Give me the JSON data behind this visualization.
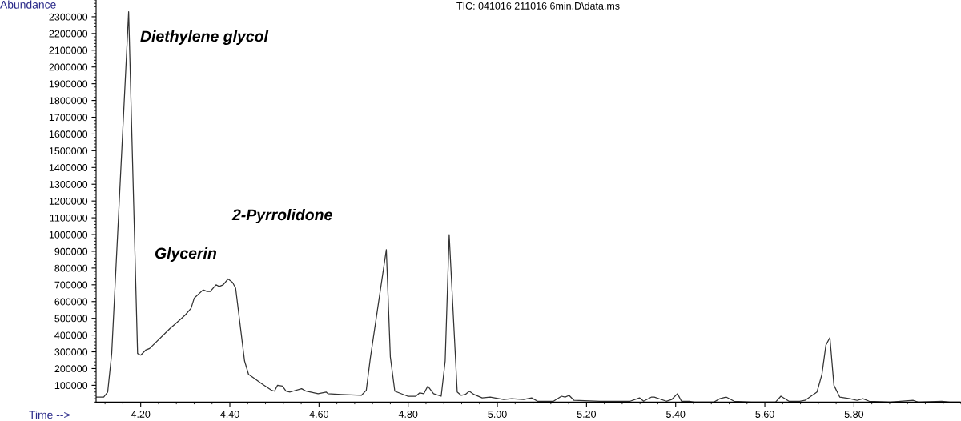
{
  "chart_data": {
    "type": "line",
    "title": "TIC: 041016 211016 6min.D\\data.ms",
    "xlabel": "Time -->",
    "ylabel": "Abundance",
    "annotations": [
      "Diethylene glycol",
      "Glycerin",
      "2-Pyrrolidone"
    ],
    "x": [
      4.1,
      4.117,
      4.126,
      4.135,
      4.173,
      4.193,
      4.2,
      4.211,
      4.22,
      4.266,
      4.279,
      4.3,
      4.313,
      4.32,
      4.34,
      4.349,
      4.356,
      4.369,
      4.376,
      4.385,
      4.396,
      4.406,
      4.413,
      4.433,
      4.442,
      4.453,
      4.471,
      4.494,
      4.5,
      4.507,
      4.518,
      4.526,
      4.535,
      4.561,
      4.571,
      4.598,
      4.616,
      4.62,
      4.65,
      4.695,
      4.706,
      4.715,
      4.751,
      4.76,
      4.77,
      4.799,
      4.817,
      4.826,
      4.835,
      4.844,
      4.857,
      4.874,
      4.883,
      4.892,
      4.91,
      4.919,
      4.928,
      4.937,
      4.948,
      4.966,
      4.984,
      5.014,
      5.032,
      5.059,
      5.077,
      5.09,
      5.126,
      5.144,
      5.152,
      5.161,
      5.172,
      5.23,
      5.298,
      5.319,
      5.328,
      5.346,
      5.352,
      5.379,
      5.391,
      5.404,
      5.413,
      5.431,
      5.441,
      5.463,
      5.486,
      5.499,
      5.513,
      5.531,
      5.57,
      5.624,
      5.636,
      5.654,
      5.678,
      5.69,
      5.701,
      5.717,
      5.728,
      5.737,
      5.746,
      5.755,
      5.768,
      5.791,
      5.807,
      5.82,
      5.834,
      5.881,
      5.933,
      5.944,
      5.997,
      6.015,
      6.037
    ],
    "series": [
      {
        "color": "#333333",
        "values": [
          30000,
          30000,
          60000,
          290000,
          2330000,
          290000,
          280000,
          310000,
          320000,
          440000,
          470000,
          520000,
          560000,
          620000,
          670000,
          660000,
          660000,
          700000,
          690000,
          700000,
          735000,
          715000,
          680000,
          245000,
          165000,
          145000,
          110000,
          70000,
          65000,
          100000,
          95000,
          65000,
          60000,
          80000,
          65000,
          50000,
          60000,
          50000,
          45000,
          40000,
          70000,
          260000,
          910000,
          270000,
          65000,
          35000,
          35000,
          55000,
          50000,
          95000,
          50000,
          35000,
          245000,
          1000000,
          60000,
          40000,
          45000,
          65000,
          45000,
          25000,
          30000,
          15000,
          20000,
          15000,
          25000,
          5000,
          5000,
          35000,
          30000,
          40000,
          10000,
          5000,
          5000,
          25000,
          5000,
          30000,
          30000,
          5000,
          15000,
          50000,
          5000,
          5000,
          0,
          0,
          0,
          20000,
          30000,
          5000,
          0,
          0,
          35000,
          5000,
          5000,
          10000,
          30000,
          60000,
          165000,
          340000,
          385000,
          100000,
          30000,
          20000,
          10000,
          20000,
          5000,
          0,
          10000,
          0,
          5000,
          0,
          0
        ]
      }
    ],
    "xlim": [
      4.1,
      6.04
    ],
    "ylim": [
      0,
      2400000
    ],
    "xticks": [
      {
        "value": 4.2,
        "label": "4.20"
      },
      {
        "value": 4.4,
        "label": "4.40"
      },
      {
        "value": 4.6,
        "label": "4.60"
      },
      {
        "value": 4.8,
        "label": "4.80"
      },
      {
        "value": 5.0,
        "label": "5.00"
      },
      {
        "value": 5.2,
        "label": "5.20"
      },
      {
        "value": 5.4,
        "label": "5.40"
      },
      {
        "value": 5.6,
        "label": "5.60"
      },
      {
        "value": 5.8,
        "label": "5.80"
      }
    ],
    "yticks": [
      100000,
      200000,
      300000,
      400000,
      500000,
      600000,
      700000,
      800000,
      900000,
      1000000,
      1100000,
      1200000,
      1300000,
      1400000,
      1500000,
      1600000,
      1700000,
      1800000,
      1900000,
      2000000,
      2100000,
      2200000,
      2300000
    ],
    "grid": false,
    "legend": false,
    "marker": "none",
    "line_style": "solid"
  }
}
